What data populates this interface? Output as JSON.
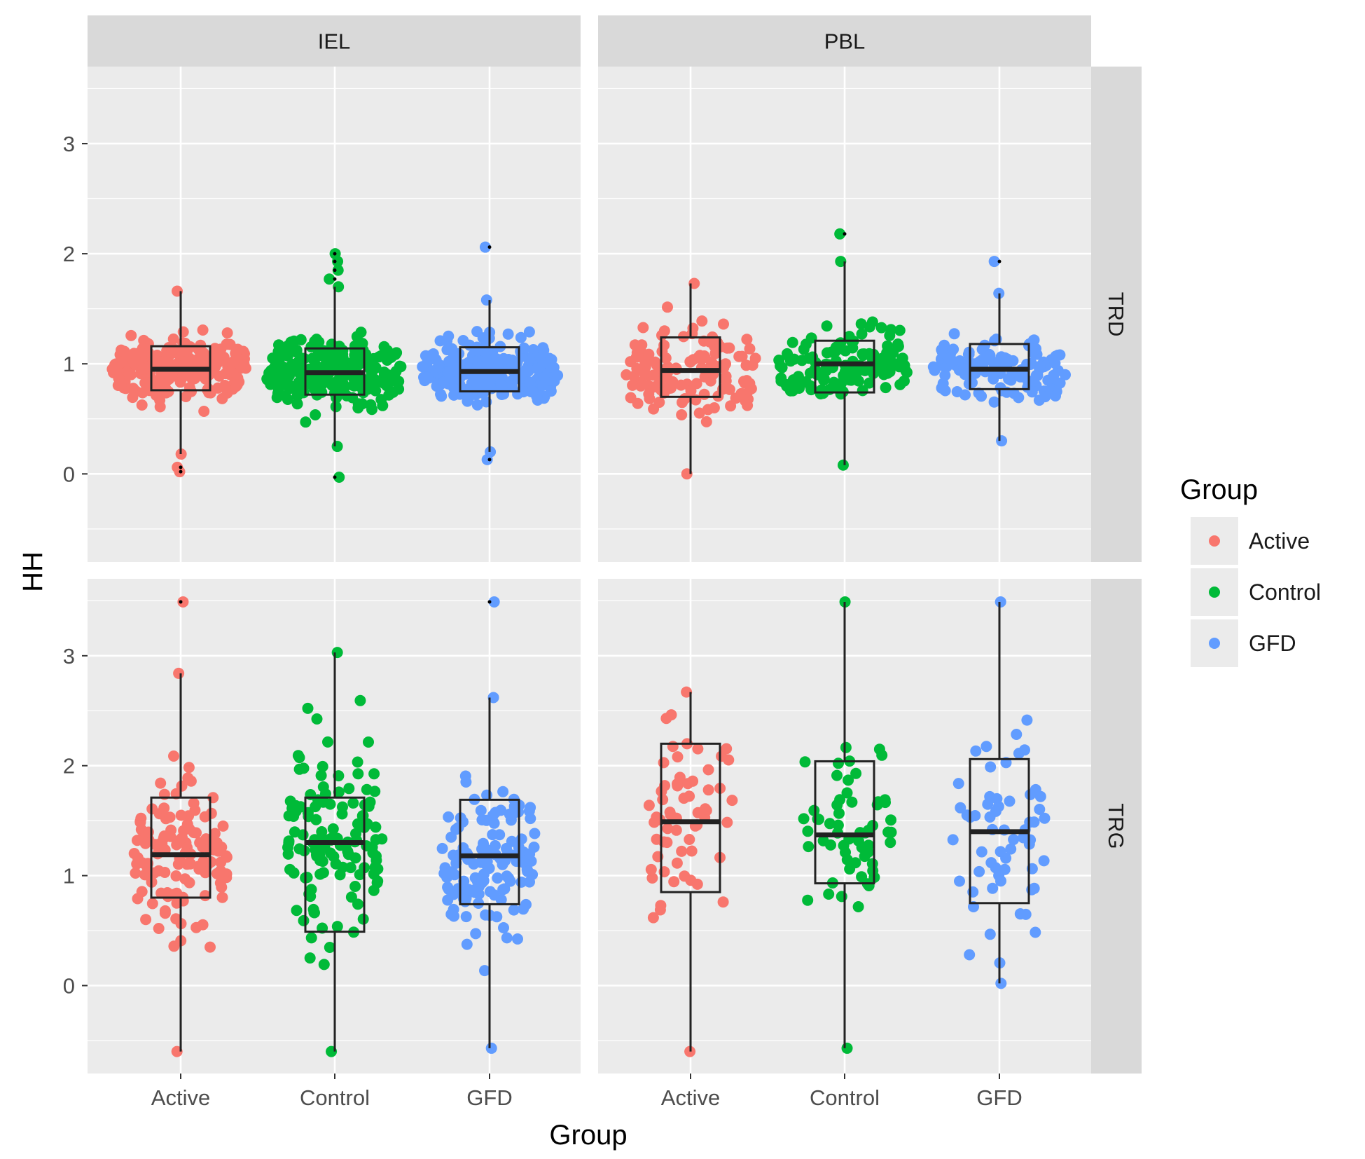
{
  "chart_data": {
    "type": "box",
    "facet_layout": "grid",
    "facets": {
      "columns": [
        "IEL",
        "PBL"
      ],
      "rows": [
        "TRD",
        "TRG"
      ]
    },
    "categories": [
      "Active",
      "Control",
      "GFD"
    ],
    "xlabel": "Group",
    "ylabel": "HH",
    "ylim": [
      -0.8,
      3.7
    ],
    "yticks": [
      0,
      1,
      2,
      3
    ],
    "grid": true,
    "legend": {
      "title": "Group",
      "position": "right",
      "entries": [
        {
          "label": "Active",
          "color": "#F8766D"
        },
        {
          "label": "Control",
          "color": "#00BA38"
        },
        {
          "label": "GFD",
          "color": "#619CFF"
        }
      ]
    },
    "boxes": {
      "IEL": {
        "TRD": [
          {
            "group": "Active",
            "min": 0.18,
            "q1": 0.76,
            "median": 0.95,
            "q3": 1.16,
            "max": 1.66,
            "outliers": [
              0.02,
              0.06
            ]
          },
          {
            "group": "Control",
            "min": 0.25,
            "q1": 0.72,
            "median": 0.92,
            "q3": 1.14,
            "max": 1.7,
            "outliers": [
              1.77,
              1.85,
              1.93,
              2.0,
              -0.03
            ]
          },
          {
            "group": "GFD",
            "min": 0.2,
            "q1": 0.75,
            "median": 0.93,
            "q3": 1.15,
            "max": 1.58,
            "outliers": [
              2.06,
              0.13
            ]
          }
        ],
        "TRG": [
          {
            "group": "Active",
            "min": -0.6,
            "q1": 0.8,
            "median": 1.19,
            "q3": 1.71,
            "max": 2.84,
            "outliers": [
              3.49
            ]
          },
          {
            "group": "Control",
            "min": -0.6,
            "q1": 0.49,
            "median": 1.3,
            "q3": 1.71,
            "max": 3.03,
            "outliers": []
          },
          {
            "group": "GFD",
            "min": -0.57,
            "q1": 0.74,
            "median": 1.18,
            "q3": 1.69,
            "max": 2.62,
            "outliers": [
              3.49
            ]
          }
        ]
      },
      "PBL": {
        "TRD": [
          {
            "group": "Active",
            "min": 0.0,
            "q1": 0.7,
            "median": 0.94,
            "q3": 1.24,
            "max": 1.73,
            "outliers": []
          },
          {
            "group": "Control",
            "min": 0.08,
            "q1": 0.74,
            "median": 1.0,
            "q3": 1.21,
            "max": 1.93,
            "outliers": [
              2.18
            ]
          },
          {
            "group": "GFD",
            "min": 0.3,
            "q1": 0.77,
            "median": 0.95,
            "q3": 1.18,
            "max": 1.64,
            "outliers": [
              1.93
            ]
          }
        ],
        "TRG": [
          {
            "group": "Active",
            "min": -0.6,
            "q1": 0.85,
            "median": 1.49,
            "q3": 2.2,
            "max": 2.67,
            "outliers": []
          },
          {
            "group": "Control",
            "min": -0.57,
            "q1": 0.93,
            "median": 1.37,
            "q3": 2.04,
            "max": 3.49,
            "outliers": []
          },
          {
            "group": "GFD",
            "min": 0.02,
            "q1": 0.75,
            "median": 1.4,
            "q3": 2.06,
            "max": 3.49,
            "outliers": []
          }
        ]
      }
    }
  }
}
